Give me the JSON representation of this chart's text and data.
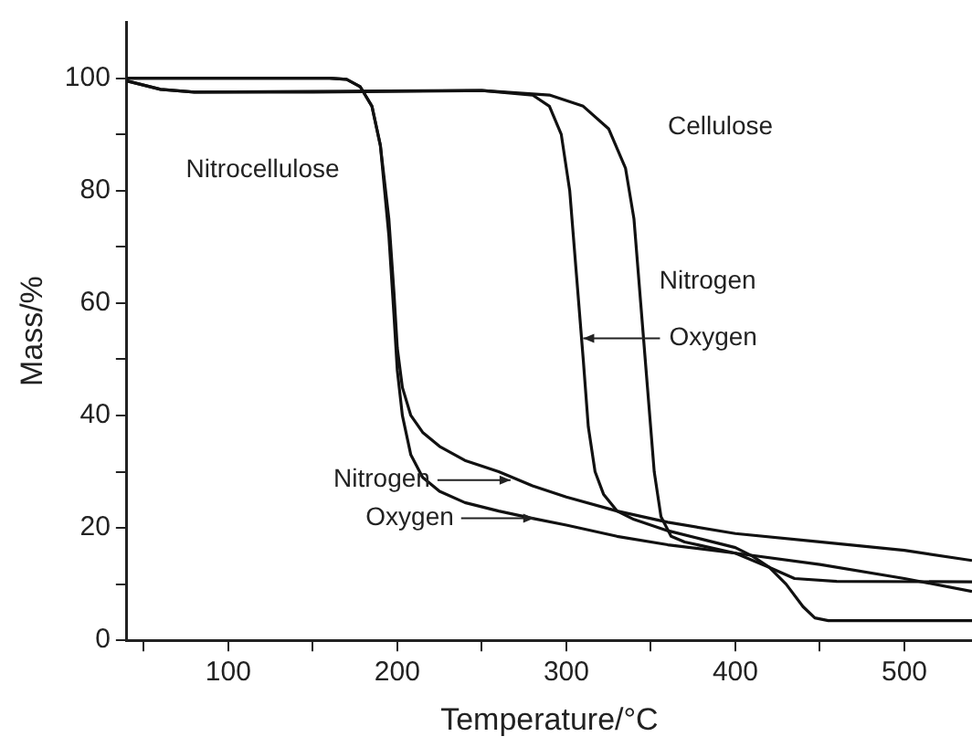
{
  "chart_data": {
    "type": "line",
    "xlabel": "Temperature/°C",
    "ylabel": "Mass/%",
    "xlim": [
      40,
      540
    ],
    "xticks": [
      {
        "value": 50,
        "label": null
      },
      100,
      {
        "value": 150,
        "label": null
      },
      200,
      {
        "value": 250,
        "label": null
      },
      300,
      {
        "value": 350,
        "label": null
      },
      400,
      {
        "value": 450,
        "label": null
      },
      500
    ],
    "ylim": [
      0,
      110
    ],
    "yticks": [
      0,
      {
        "value": 10,
        "label": null
      },
      20,
      {
        "value": 30,
        "label": null
      },
      40,
      {
        "value": 50,
        "label": null
      },
      60,
      {
        "value": 70,
        "label": null
      },
      80,
      {
        "value": 90,
        "label": null
      },
      100
    ],
    "grid": false,
    "legend": false,
    "marker": "none",
    "line_style": "solid",
    "series": [
      {
        "color": "#111111",
        "x": [
          40,
          100,
          160,
          170,
          178,
          185,
          190,
          195,
          198,
          200,
          203,
          208,
          215,
          225,
          240,
          260,
          280,
          300,
          330,
          360,
          400,
          450,
          500,
          540
        ],
        "values": [
          100,
          100,
          100,
          99.8,
          98.5,
          95,
          88,
          75,
          62,
          52,
          45,
          40,
          37,
          34.5,
          32,
          30,
          27.5,
          25.5,
          23,
          21,
          19,
          17.5,
          16,
          14.2
        ]
      },
      {
        "color": "#111111",
        "x": [
          40,
          100,
          160,
          170,
          178,
          185,
          190,
          195,
          198,
          200,
          203,
          208,
          215,
          225,
          240,
          260,
          280,
          300,
          330,
          360,
          400,
          450,
          500,
          540
        ],
        "values": [
          100,
          100,
          100,
          99.8,
          98.5,
          95,
          88,
          72,
          58,
          48,
          40,
          33,
          29,
          26.5,
          24.5,
          23,
          21.7,
          20.5,
          18.5,
          17,
          15.5,
          13.5,
          11,
          8.7
        ]
      },
      {
        "color": "#111111",
        "x": [
          40,
          60,
          80,
          150,
          250,
          280,
          290,
          297,
          302,
          306,
          310,
          313,
          317,
          322,
          330,
          340,
          360,
          380,
          400,
          410,
          420,
          430,
          440,
          447,
          455,
          540
        ],
        "values": [
          99.5,
          98,
          97.5,
          97.5,
          97.8,
          97,
          95,
          90,
          80,
          65,
          50,
          38,
          30,
          26,
          23,
          21.5,
          19.5,
          18,
          16.5,
          15,
          13,
          10,
          6,
          4,
          3.5,
          3.5
        ]
      },
      {
        "color": "#111111",
        "x": [
          40,
          60,
          80,
          250,
          290,
          310,
          325,
          335,
          340,
          344,
          348,
          352,
          356,
          362,
          370,
          400,
          420,
          435,
          460,
          540
        ],
        "values": [
          99.5,
          98,
          97.5,
          97.8,
          97,
          95,
          91,
          84,
          75,
          60,
          45,
          30,
          22,
          18.5,
          17.5,
          15.5,
          13,
          11,
          10.5,
          10.4
        ]
      }
    ],
    "annotations": [
      "Nitrocellulose",
      "Cellulose",
      "Nitrogen",
      {
        "text": "Oxygen",
        "x": 310,
        "y": 53.7
      },
      {
        "text": "Nitrogen",
        "x": 267,
        "y": 28.5
      },
      {
        "text": "Oxygen",
        "x": 281,
        "y": 21.7
      }
    ]
  }
}
